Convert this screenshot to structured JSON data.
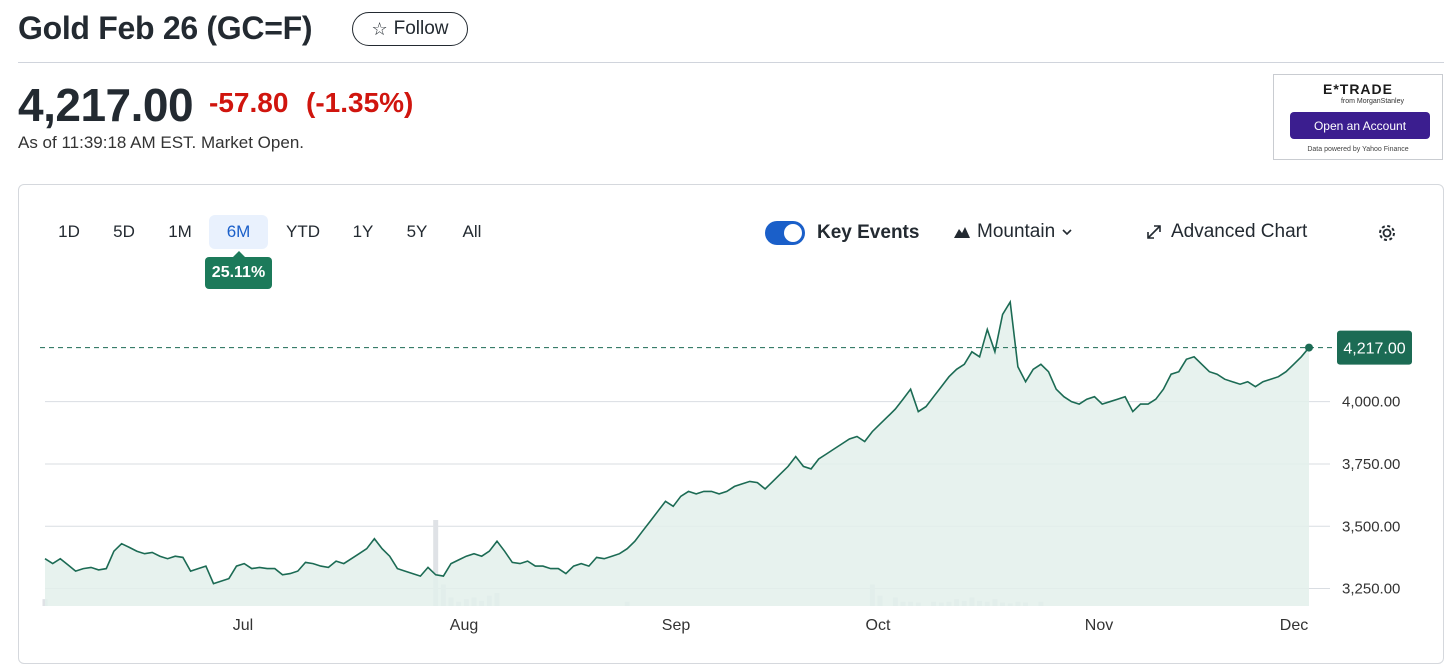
{
  "header": {
    "title": "Gold Feb 26 (GC=F)",
    "follow_label": "Follow",
    "price": "4,217.00",
    "change": "-57.80",
    "change_pct": "(-1.35%)",
    "as_of": "As of 11:39:18 AM EST. Market Open."
  },
  "ad": {
    "logo": "E*TRADE",
    "logo_sub": "from MorganStanley",
    "button": "Open an Account",
    "powered": "Data powered by Yahoo Finance"
  },
  "toolbar": {
    "ranges": [
      "1D",
      "5D",
      "1M",
      "6M",
      "YTD",
      "1Y",
      "5Y",
      "All"
    ],
    "active_range": "6M",
    "range_return": "25.11%",
    "key_events_label": "Key Events",
    "key_events_on": true,
    "chart_type_label": "Mountain",
    "advanced_label": "Advanced Chart"
  },
  "colors": {
    "line": "#1c6b54",
    "fill": "#e3f0eb",
    "negative": "#d0150e",
    "accent": "#1a5fc9"
  },
  "chart_data": {
    "type": "area",
    "ylim": [
      3180,
      4440
    ],
    "y_ticks": [
      3250,
      3500,
      3750,
      4000
    ],
    "y_tick_labels": [
      "3,250.00",
      "3,500.00",
      "3,750.00",
      "4,000.00"
    ],
    "x_labels": [
      "Jul",
      "Aug",
      "Sep",
      "Oct",
      "Nov",
      "Dec"
    ],
    "current_value": 4217,
    "current_label": "4,217.00",
    "series": [
      {
        "values": [
          3370,
          3350,
          3370,
          3345,
          3320,
          3330,
          3335,
          3325,
          3330,
          3400,
          3430,
          3415,
          3400,
          3390,
          3395,
          3380,
          3370,
          3380,
          3375,
          3320,
          3330,
          3340,
          3270,
          3280,
          3290,
          3340,
          3350,
          3330,
          3335,
          3330,
          3330,
          3305,
          3310,
          3320,
          3355,
          3350,
          3340,
          3335,
          3360,
          3350,
          3370,
          3390,
          3410,
          3450,
          3410,
          3380,
          3330,
          3320,
          3310,
          3300,
          3335,
          3305,
          3300,
          3350,
          3365,
          3380,
          3390,
          3380,
          3400,
          3440,
          3400,
          3355,
          3350,
          3360,
          3340,
          3340,
          3330,
          3330,
          3310,
          3340,
          3350,
          3340,
          3375,
          3370,
          3380,
          3390,
          3410,
          3440,
          3480,
          3520,
          3560,
          3600,
          3580,
          3620,
          3640,
          3630,
          3640,
          3640,
          3630,
          3640,
          3660,
          3670,
          3680,
          3675,
          3650,
          3680,
          3710,
          3740,
          3780,
          3740,
          3730,
          3770,
          3790,
          3810,
          3830,
          3850,
          3860,
          3840,
          3880,
          3910,
          3940,
          3970,
          4010,
          4050,
          3960,
          3980,
          4020,
          4060,
          4100,
          4130,
          4150,
          4200,
          4180,
          4290,
          4200,
          4350,
          4400,
          4140,
          4080,
          4130,
          4150,
          4120,
          4050,
          4020,
          4000,
          3990,
          4010,
          4020,
          3990,
          4000,
          4010,
          4020,
          3960,
          3990,
          3990,
          4010,
          4050,
          4110,
          4120,
          4170,
          4180,
          4150,
          4120,
          4110,
          4090,
          4080,
          4070,
          4080,
          4060,
          4080,
          4090,
          4100,
          4120,
          4150,
          4180,
          4217
        ]
      }
    ],
    "volume": [
      0.08,
      0,
      0,
      0,
      0,
      0,
      0,
      0,
      0,
      0,
      0,
      0,
      0,
      0,
      0,
      0,
      0,
      0,
      0,
      0,
      0,
      0,
      0,
      0,
      0,
      0,
      0,
      0,
      0,
      0,
      0,
      0,
      0,
      0,
      0,
      0,
      0,
      0,
      0,
      0,
      0,
      0,
      0,
      0,
      0,
      0,
      0,
      0,
      0,
      0,
      0,
      1.0,
      0.25,
      0.1,
      0.05,
      0.08,
      0.1,
      0.06,
      0.12,
      0.15,
      0,
      0,
      0,
      0,
      0,
      0,
      0,
      0,
      0,
      0,
      0,
      0,
      0,
      0,
      0,
      0,
      0.05,
      0,
      0,
      0,
      0,
      0,
      0,
      0,
      0,
      0,
      0,
      0,
      0,
      0,
      0,
      0,
      0,
      0,
      0,
      0,
      0,
      0,
      0,
      0,
      0,
      0,
      0,
      0,
      0,
      0,
      0,
      0,
      0.25,
      0.12,
      0,
      0.1,
      0.05,
      0.05,
      0.04,
      0,
      0.05,
      0.04,
      0.05,
      0.08,
      0.06,
      0.1,
      0.06,
      0.05,
      0.08,
      0.04,
      0.03,
      0.05,
      0.04,
      0,
      0.05,
      0,
      0,
      0,
      0,
      0,
      0,
      0,
      0,
      0,
      0,
      0,
      0,
      0,
      0,
      0,
      0,
      0,
      0,
      0,
      0,
      0,
      0,
      0,
      0,
      0,
      0,
      0,
      0,
      0,
      0,
      0,
      0,
      0,
      0,
      0,
      0,
      0,
      0,
      0
    ]
  }
}
